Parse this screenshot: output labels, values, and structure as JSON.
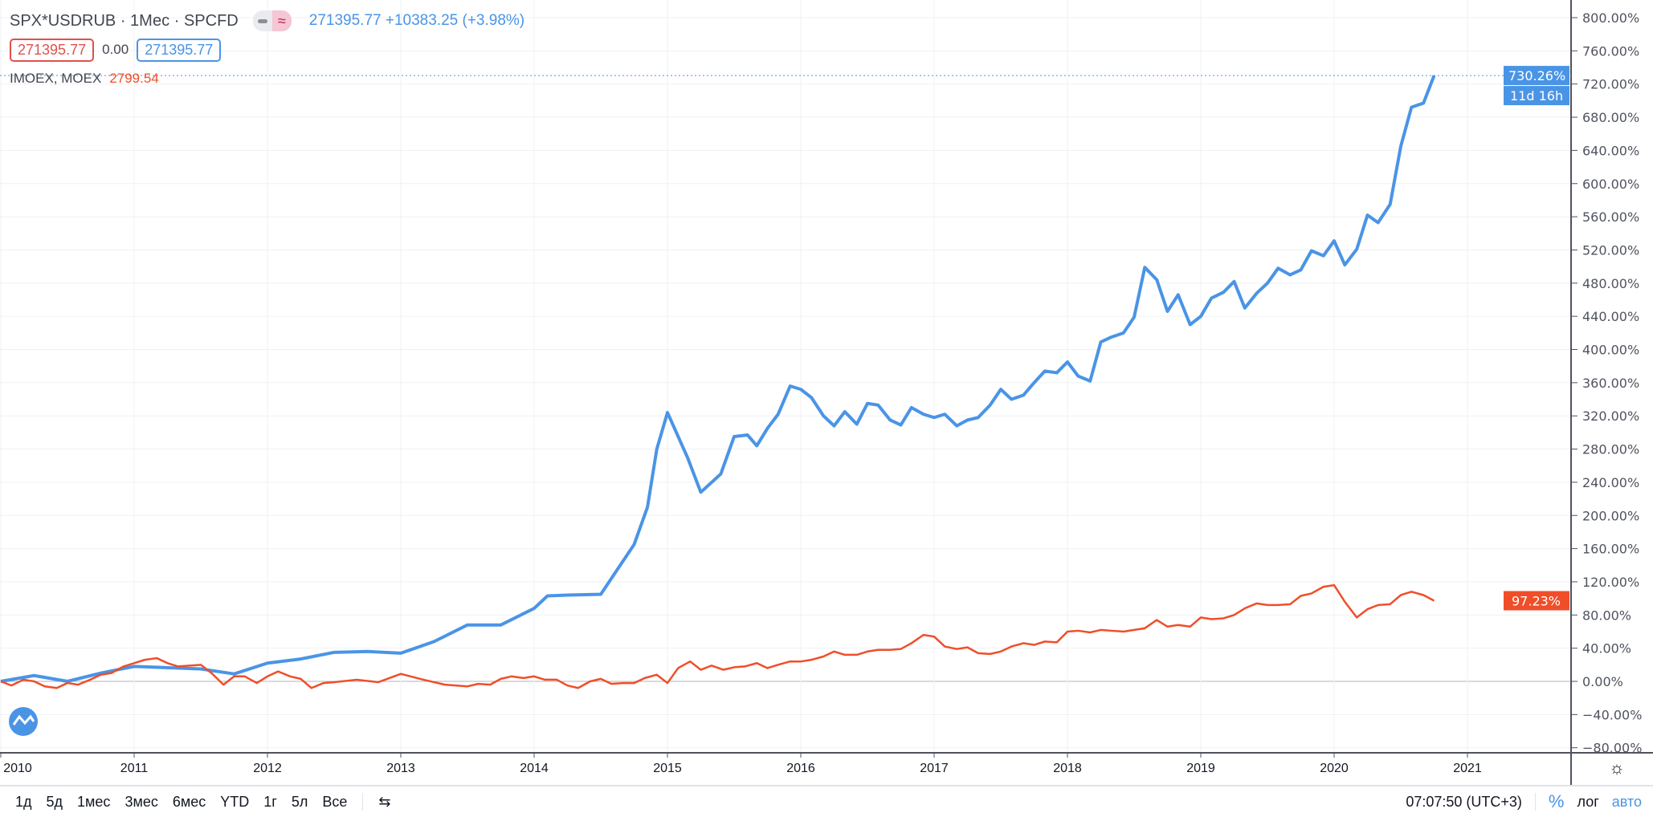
{
  "header": {
    "symbol": "SPX*USDRUB",
    "interval": "1Мес",
    "exchange": "SPCFD",
    "price": "271395.77",
    "change": "+10383.25",
    "change_pct": "(+3.98%)",
    "bid": "271395.77",
    "spread": "0.00",
    "ask": "271395.77"
  },
  "compare": {
    "symbol": "IMOEX, MOEX",
    "value": "2799.54"
  },
  "colors": {
    "blue": "#4a94e6",
    "red": "#f04e29",
    "grid": "#eef1f5"
  },
  "price_labels": {
    "blue": "730.26%",
    "blue_countdown": "11d 16h",
    "red": "97.23%"
  },
  "toolbar": {
    "ranges": [
      "1д",
      "5д",
      "1мес",
      "3мес",
      "6мес",
      "YTD",
      "1г",
      "5л",
      "Все"
    ],
    "time": "07:07:50 (UTC+3)",
    "percent": "%",
    "log": "лог",
    "auto": "авто"
  },
  "chart_data": {
    "type": "line",
    "ylabel": "%",
    "ylim": [
      -80,
      800
    ],
    "xlim": [
      2010,
      2021.6
    ],
    "yticks": [
      "800.00%",
      "760.00%",
      "720.00%",
      "680.00%",
      "640.00%",
      "600.00%",
      "560.00%",
      "520.00%",
      "480.00%",
      "440.00%",
      "400.00%",
      "360.00%",
      "320.00%",
      "280.00%",
      "240.00%",
      "200.00%",
      "160.00%",
      "120.00%",
      "80.00%",
      "40.00%",
      "0.00%",
      "−40.00%",
      "−80.00%"
    ],
    "xticks": [
      "2010",
      "2011",
      "2012",
      "2013",
      "2014",
      "2015",
      "2016",
      "2017",
      "2018",
      "2019",
      "2020",
      "2021"
    ],
    "series": [
      {
        "name": "SPX*USDRUB",
        "color": "blue",
        "points": [
          [
            2010,
            0
          ],
          [
            2010.25,
            7
          ],
          [
            2010.5,
            0
          ],
          [
            2010.75,
            10
          ],
          [
            2011,
            18
          ],
          [
            2011.5,
            15
          ],
          [
            2011.75,
            9
          ],
          [
            2012,
            22
          ],
          [
            2012.25,
            27
          ],
          [
            2012.5,
            35
          ],
          [
            2012.75,
            36
          ],
          [
            2013,
            34
          ],
          [
            2013.25,
            48
          ],
          [
            2013.5,
            68
          ],
          [
            2013.75,
            68
          ],
          [
            2014,
            88
          ],
          [
            2014.1,
            103
          ],
          [
            2014.25,
            104
          ],
          [
            2014.5,
            105
          ],
          [
            2014.75,
            165
          ],
          [
            2014.85,
            210
          ],
          [
            2014.92,
            280
          ],
          [
            2015,
            324
          ],
          [
            2015.15,
            270
          ],
          [
            2015.25,
            228
          ],
          [
            2015.4,
            250
          ],
          [
            2015.5,
            295
          ],
          [
            2015.6,
            297
          ],
          [
            2015.67,
            284
          ],
          [
            2015.75,
            305
          ],
          [
            2015.83,
            322
          ],
          [
            2015.92,
            356
          ],
          [
            2016,
            352
          ],
          [
            2016.08,
            342
          ],
          [
            2016.17,
            320
          ],
          [
            2016.25,
            308
          ],
          [
            2016.33,
            325
          ],
          [
            2016.42,
            310
          ],
          [
            2016.5,
            335
          ],
          [
            2016.58,
            333
          ],
          [
            2016.67,
            315
          ],
          [
            2016.75,
            309
          ],
          [
            2016.83,
            330
          ],
          [
            2016.92,
            322
          ],
          [
            2017,
            318
          ],
          [
            2017.08,
            322
          ],
          [
            2017.17,
            308
          ],
          [
            2017.25,
            315
          ],
          [
            2017.33,
            318
          ],
          [
            2017.42,
            333
          ],
          [
            2017.5,
            352
          ],
          [
            2017.58,
            340
          ],
          [
            2017.67,
            345
          ],
          [
            2017.75,
            360
          ],
          [
            2017.83,
            374
          ],
          [
            2017.92,
            372
          ],
          [
            2018,
            385
          ],
          [
            2018.08,
            368
          ],
          [
            2018.17,
            362
          ],
          [
            2018.25,
            409
          ],
          [
            2018.33,
            415
          ],
          [
            2018.42,
            420
          ],
          [
            2018.5,
            439
          ],
          [
            2018.58,
            499
          ],
          [
            2018.67,
            484
          ],
          [
            2018.75,
            446
          ],
          [
            2018.83,
            466
          ],
          [
            2018.92,
            430
          ],
          [
            2019,
            440
          ],
          [
            2019.08,
            462
          ],
          [
            2019.17,
            469
          ],
          [
            2019.25,
            482
          ],
          [
            2019.33,
            450
          ],
          [
            2019.42,
            468
          ],
          [
            2019.5,
            480
          ],
          [
            2019.58,
            498
          ],
          [
            2019.67,
            490
          ],
          [
            2019.75,
            496
          ],
          [
            2019.83,
            519
          ],
          [
            2019.92,
            513
          ],
          [
            2020,
            531
          ],
          [
            2020.08,
            502
          ],
          [
            2020.17,
            521
          ],
          [
            2020.25,
            562
          ],
          [
            2020.33,
            553
          ],
          [
            2020.42,
            575
          ],
          [
            2020.5,
            645
          ],
          [
            2020.58,
            692
          ],
          [
            2020.67,
            697
          ],
          [
            2020.75,
            730.26
          ]
        ]
      },
      {
        "name": "IMOEX, MOEX",
        "color": "red",
        "points": [
          [
            2010,
            0
          ],
          [
            2010.08,
            -5
          ],
          [
            2010.17,
            2
          ],
          [
            2010.25,
            0
          ],
          [
            2010.33,
            -6
          ],
          [
            2010.42,
            -8
          ],
          [
            2010.5,
            -2
          ],
          [
            2010.58,
            -4
          ],
          [
            2010.67,
            2
          ],
          [
            2010.75,
            8
          ],
          [
            2010.83,
            10
          ],
          [
            2010.92,
            18
          ],
          [
            2011,
            22
          ],
          [
            2011.08,
            26
          ],
          [
            2011.17,
            28
          ],
          [
            2011.25,
            22
          ],
          [
            2011.33,
            18
          ],
          [
            2011.5,
            20
          ],
          [
            2011.58,
            10
          ],
          [
            2011.67,
            -4
          ],
          [
            2011.75,
            6
          ],
          [
            2011.83,
            6
          ],
          [
            2011.92,
            -2
          ],
          [
            2012,
            6
          ],
          [
            2012.08,
            12
          ],
          [
            2012.17,
            6
          ],
          [
            2012.25,
            3
          ],
          [
            2012.33,
            -8
          ],
          [
            2012.42,
            -2
          ],
          [
            2012.5,
            -1
          ],
          [
            2012.67,
            2
          ],
          [
            2012.83,
            -1
          ],
          [
            2013,
            9
          ],
          [
            2013.17,
            2
          ],
          [
            2013.33,
            -4
          ],
          [
            2013.5,
            -6
          ],
          [
            2013.58,
            -3
          ],
          [
            2013.67,
            -4
          ],
          [
            2013.75,
            3
          ],
          [
            2013.83,
            6
          ],
          [
            2013.92,
            4
          ],
          [
            2014,
            6
          ],
          [
            2014.08,
            2
          ],
          [
            2014.17,
            2
          ],
          [
            2014.25,
            -5
          ],
          [
            2014.33,
            -8
          ],
          [
            2014.42,
            0
          ],
          [
            2014.5,
            3
          ],
          [
            2014.58,
            -3
          ],
          [
            2014.67,
            -2
          ],
          [
            2014.75,
            -2
          ],
          [
            2014.83,
            4
          ],
          [
            2014.92,
            8
          ],
          [
            2015,
            -2
          ],
          [
            2015.08,
            16
          ],
          [
            2015.17,
            24
          ],
          [
            2015.25,
            14
          ],
          [
            2015.33,
            19
          ],
          [
            2015.42,
            14
          ],
          [
            2015.5,
            17
          ],
          [
            2015.58,
            18
          ],
          [
            2015.67,
            22
          ],
          [
            2015.75,
            16
          ],
          [
            2015.83,
            20
          ],
          [
            2015.92,
            24
          ],
          [
            2016,
            24
          ],
          [
            2016.08,
            26
          ],
          [
            2016.17,
            30
          ],
          [
            2016.25,
            36
          ],
          [
            2016.33,
            32
          ],
          [
            2016.42,
            32
          ],
          [
            2016.5,
            36
          ],
          [
            2016.58,
            38
          ],
          [
            2016.67,
            38
          ],
          [
            2016.75,
            39
          ],
          [
            2016.83,
            46
          ],
          [
            2016.92,
            56
          ],
          [
            2017,
            54
          ],
          [
            2017.08,
            42
          ],
          [
            2017.17,
            39
          ],
          [
            2017.25,
            41
          ],
          [
            2017.33,
            34
          ],
          [
            2017.42,
            33
          ],
          [
            2017.5,
            36
          ],
          [
            2017.58,
            42
          ],
          [
            2017.67,
            46
          ],
          [
            2017.75,
            44
          ],
          [
            2017.83,
            48
          ],
          [
            2017.92,
            47
          ],
          [
            2018,
            60
          ],
          [
            2018.08,
            61
          ],
          [
            2018.17,
            59
          ],
          [
            2018.25,
            62
          ],
          [
            2018.33,
            61
          ],
          [
            2018.42,
            60
          ],
          [
            2018.5,
            62
          ],
          [
            2018.58,
            64
          ],
          [
            2018.67,
            74
          ],
          [
            2018.75,
            66
          ],
          [
            2018.83,
            68
          ],
          [
            2018.92,
            66
          ],
          [
            2019,
            77
          ],
          [
            2019.08,
            75
          ],
          [
            2019.17,
            76
          ],
          [
            2019.25,
            80
          ],
          [
            2019.33,
            88
          ],
          [
            2019.42,
            94
          ],
          [
            2019.5,
            92
          ],
          [
            2019.58,
            92
          ],
          [
            2019.67,
            93
          ],
          [
            2019.75,
            103
          ],
          [
            2019.83,
            106
          ],
          [
            2019.92,
            114
          ],
          [
            2020,
            116
          ],
          [
            2020.08,
            96
          ],
          [
            2020.17,
            77
          ],
          [
            2020.25,
            87
          ],
          [
            2020.33,
            92
          ],
          [
            2020.42,
            93
          ],
          [
            2020.5,
            104
          ],
          [
            2020.58,
            108
          ],
          [
            2020.67,
            104
          ],
          [
            2020.75,
            97.23
          ]
        ]
      }
    ]
  }
}
